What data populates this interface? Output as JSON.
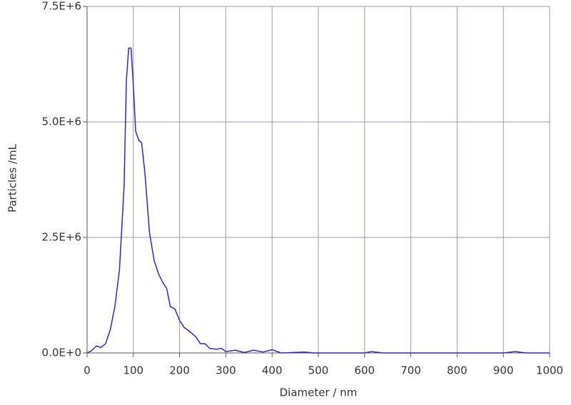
{
  "chart_data": {
    "type": "line",
    "x_label": "Diameter / nm",
    "y_label": "Particles /mL",
    "x": [
      0,
      10,
      20,
      30,
      40,
      50,
      60,
      70,
      80,
      85,
      90,
      95,
      100,
      105,
      112,
      118,
      125,
      135,
      145,
      155,
      165,
      172,
      180,
      190,
      200,
      210,
      220,
      235,
      245,
      255,
      265,
      280,
      290,
      300,
      320,
      340,
      360,
      380,
      400,
      420,
      470,
      490,
      600,
      615,
      640,
      900,
      925,
      950,
      1000
    ],
    "values": [
      0,
      50000,
      150000,
      120000,
      200000,
      500000,
      1000000,
      1800000,
      3600000,
      5900000,
      6600000,
      6600000,
      5800000,
      4800000,
      4600000,
      4550000,
      3900000,
      2600000,
      2000000,
      1700000,
      1500000,
      1400000,
      1000000,
      950000,
      700000,
      550000,
      480000,
      350000,
      200000,
      200000,
      100000,
      80000,
      100000,
      30000,
      60000,
      10000,
      60000,
      20000,
      70000,
      0,
      20000,
      0,
      0,
      30000,
      0,
      0,
      30000,
      0,
      0
    ],
    "color": "#3b22c4",
    "xlim": [
      0,
      1000
    ],
    "ylim": [
      0,
      7500000
    ],
    "xticks": [
      0,
      100,
      200,
      300,
      400,
      500,
      600,
      700,
      800,
      900,
      1000
    ],
    "yticks": [
      {
        "value": 0,
        "label": "0.0E+0"
      },
      {
        "value": 2500000,
        "label": "2.5E+6"
      },
      {
        "value": 5000000,
        "label": "5.0E+6"
      },
      {
        "value": 7500000,
        "label": "7.5E+6"
      }
    ],
    "grid": true
  }
}
